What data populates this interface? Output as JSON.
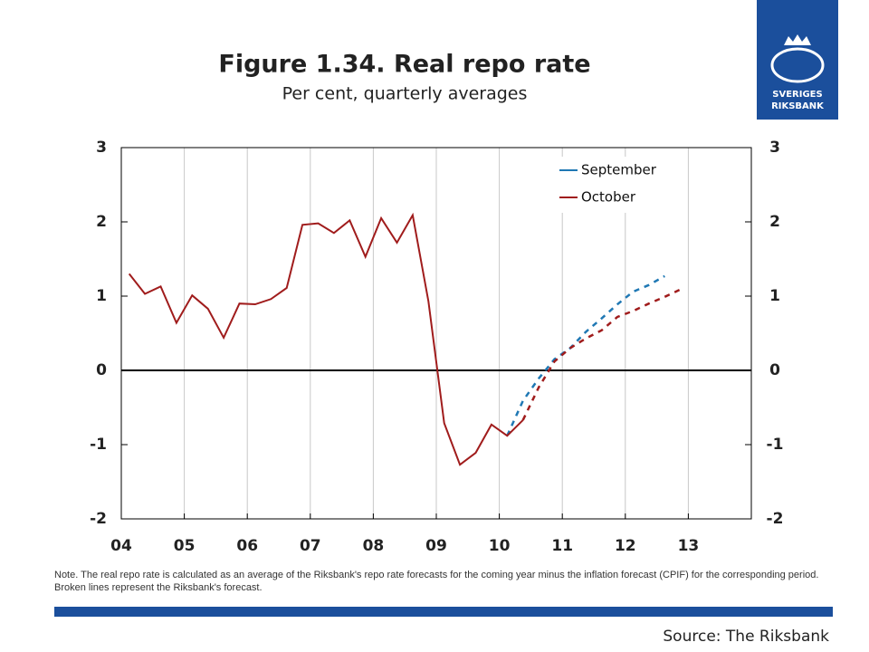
{
  "chart_data": {
    "type": "line",
    "title": "Figure 1.34. Real repo rate",
    "subtitle": "Per cent, quarterly averages",
    "x": [
      2004.125,
      2004.375,
      2004.625,
      2004.875,
      2005.125,
      2005.375,
      2005.625,
      2005.875,
      2006.125,
      2006.375,
      2006.625,
      2006.875,
      2007.125,
      2007.375,
      2007.625,
      2007.875,
      2008.125,
      2008.375,
      2008.625,
      2008.875,
      2009.125,
      2009.375,
      2009.625,
      2009.875,
      2010.125,
      2010.375,
      2010.625,
      2010.875,
      2011.125,
      2011.375,
      2011.625,
      2011.875,
      2012.125,
      2012.375,
      2012.625,
      2012.875
    ],
    "series": [
      {
        "name": "September",
        "color": "#1f78b4",
        "dashed_from_x": 2010.125,
        "values": [
          null,
          null,
          null,
          null,
          null,
          null,
          null,
          null,
          null,
          null,
          null,
          null,
          null,
          null,
          null,
          null,
          null,
          null,
          null,
          null,
          null,
          null,
          null,
          null,
          -0.88,
          -0.41,
          -0.11,
          0.15,
          0.3,
          0.52,
          0.7,
          0.89,
          1.06,
          1.15,
          1.27,
          null
        ]
      },
      {
        "name": "October",
        "color": "#a01c1c",
        "dashed_from_x": 2010.375,
        "values": [
          1.3,
          1.03,
          1.13,
          0.64,
          1.01,
          0.83,
          0.44,
          0.9,
          0.89,
          0.96,
          1.11,
          1.96,
          1.98,
          1.85,
          2.02,
          1.53,
          2.05,
          1.72,
          2.09,
          0.93,
          -0.71,
          -1.27,
          -1.11,
          -0.73,
          -0.88,
          -0.67,
          -0.23,
          0.12,
          0.3,
          0.43,
          0.54,
          0.72,
          0.8,
          0.9,
          0.99,
          1.09
        ]
      }
    ],
    "xlim": [
      2004,
      2014
    ],
    "xticks": [
      {
        "value": 2004,
        "label": "04"
      },
      {
        "value": 2005,
        "label": "05"
      },
      {
        "value": 2006,
        "label": "06"
      },
      {
        "value": 2007,
        "label": "07"
      },
      {
        "value": 2008,
        "label": "08"
      },
      {
        "value": 2009,
        "label": "09"
      },
      {
        "value": 2010,
        "label": "10"
      },
      {
        "value": 2011,
        "label": "11"
      },
      {
        "value": 2012,
        "label": "12"
      },
      {
        "value": 2013,
        "label": "13"
      }
    ],
    "ylim": [
      -2,
      3
    ],
    "yticks": [
      -2,
      -1,
      0,
      1,
      2,
      3
    ],
    "y2lim": [
      -2,
      3
    ],
    "y2ticks": [
      -2,
      -1,
      0,
      1,
      2,
      3
    ],
    "grid": true,
    "legend": "upper right",
    "note": "Note. The real repo rate is calculated as an average of the Riksbank's repo rate forecasts for the coming year minus the inflation forecast (CPIF) for the corresponding period. Broken lines represent the Riksbank's forecast.",
    "source": "Source: The Riksbank"
  },
  "logo": {
    "line1": "SVERIGES",
    "line2": "RIKSBANK"
  }
}
